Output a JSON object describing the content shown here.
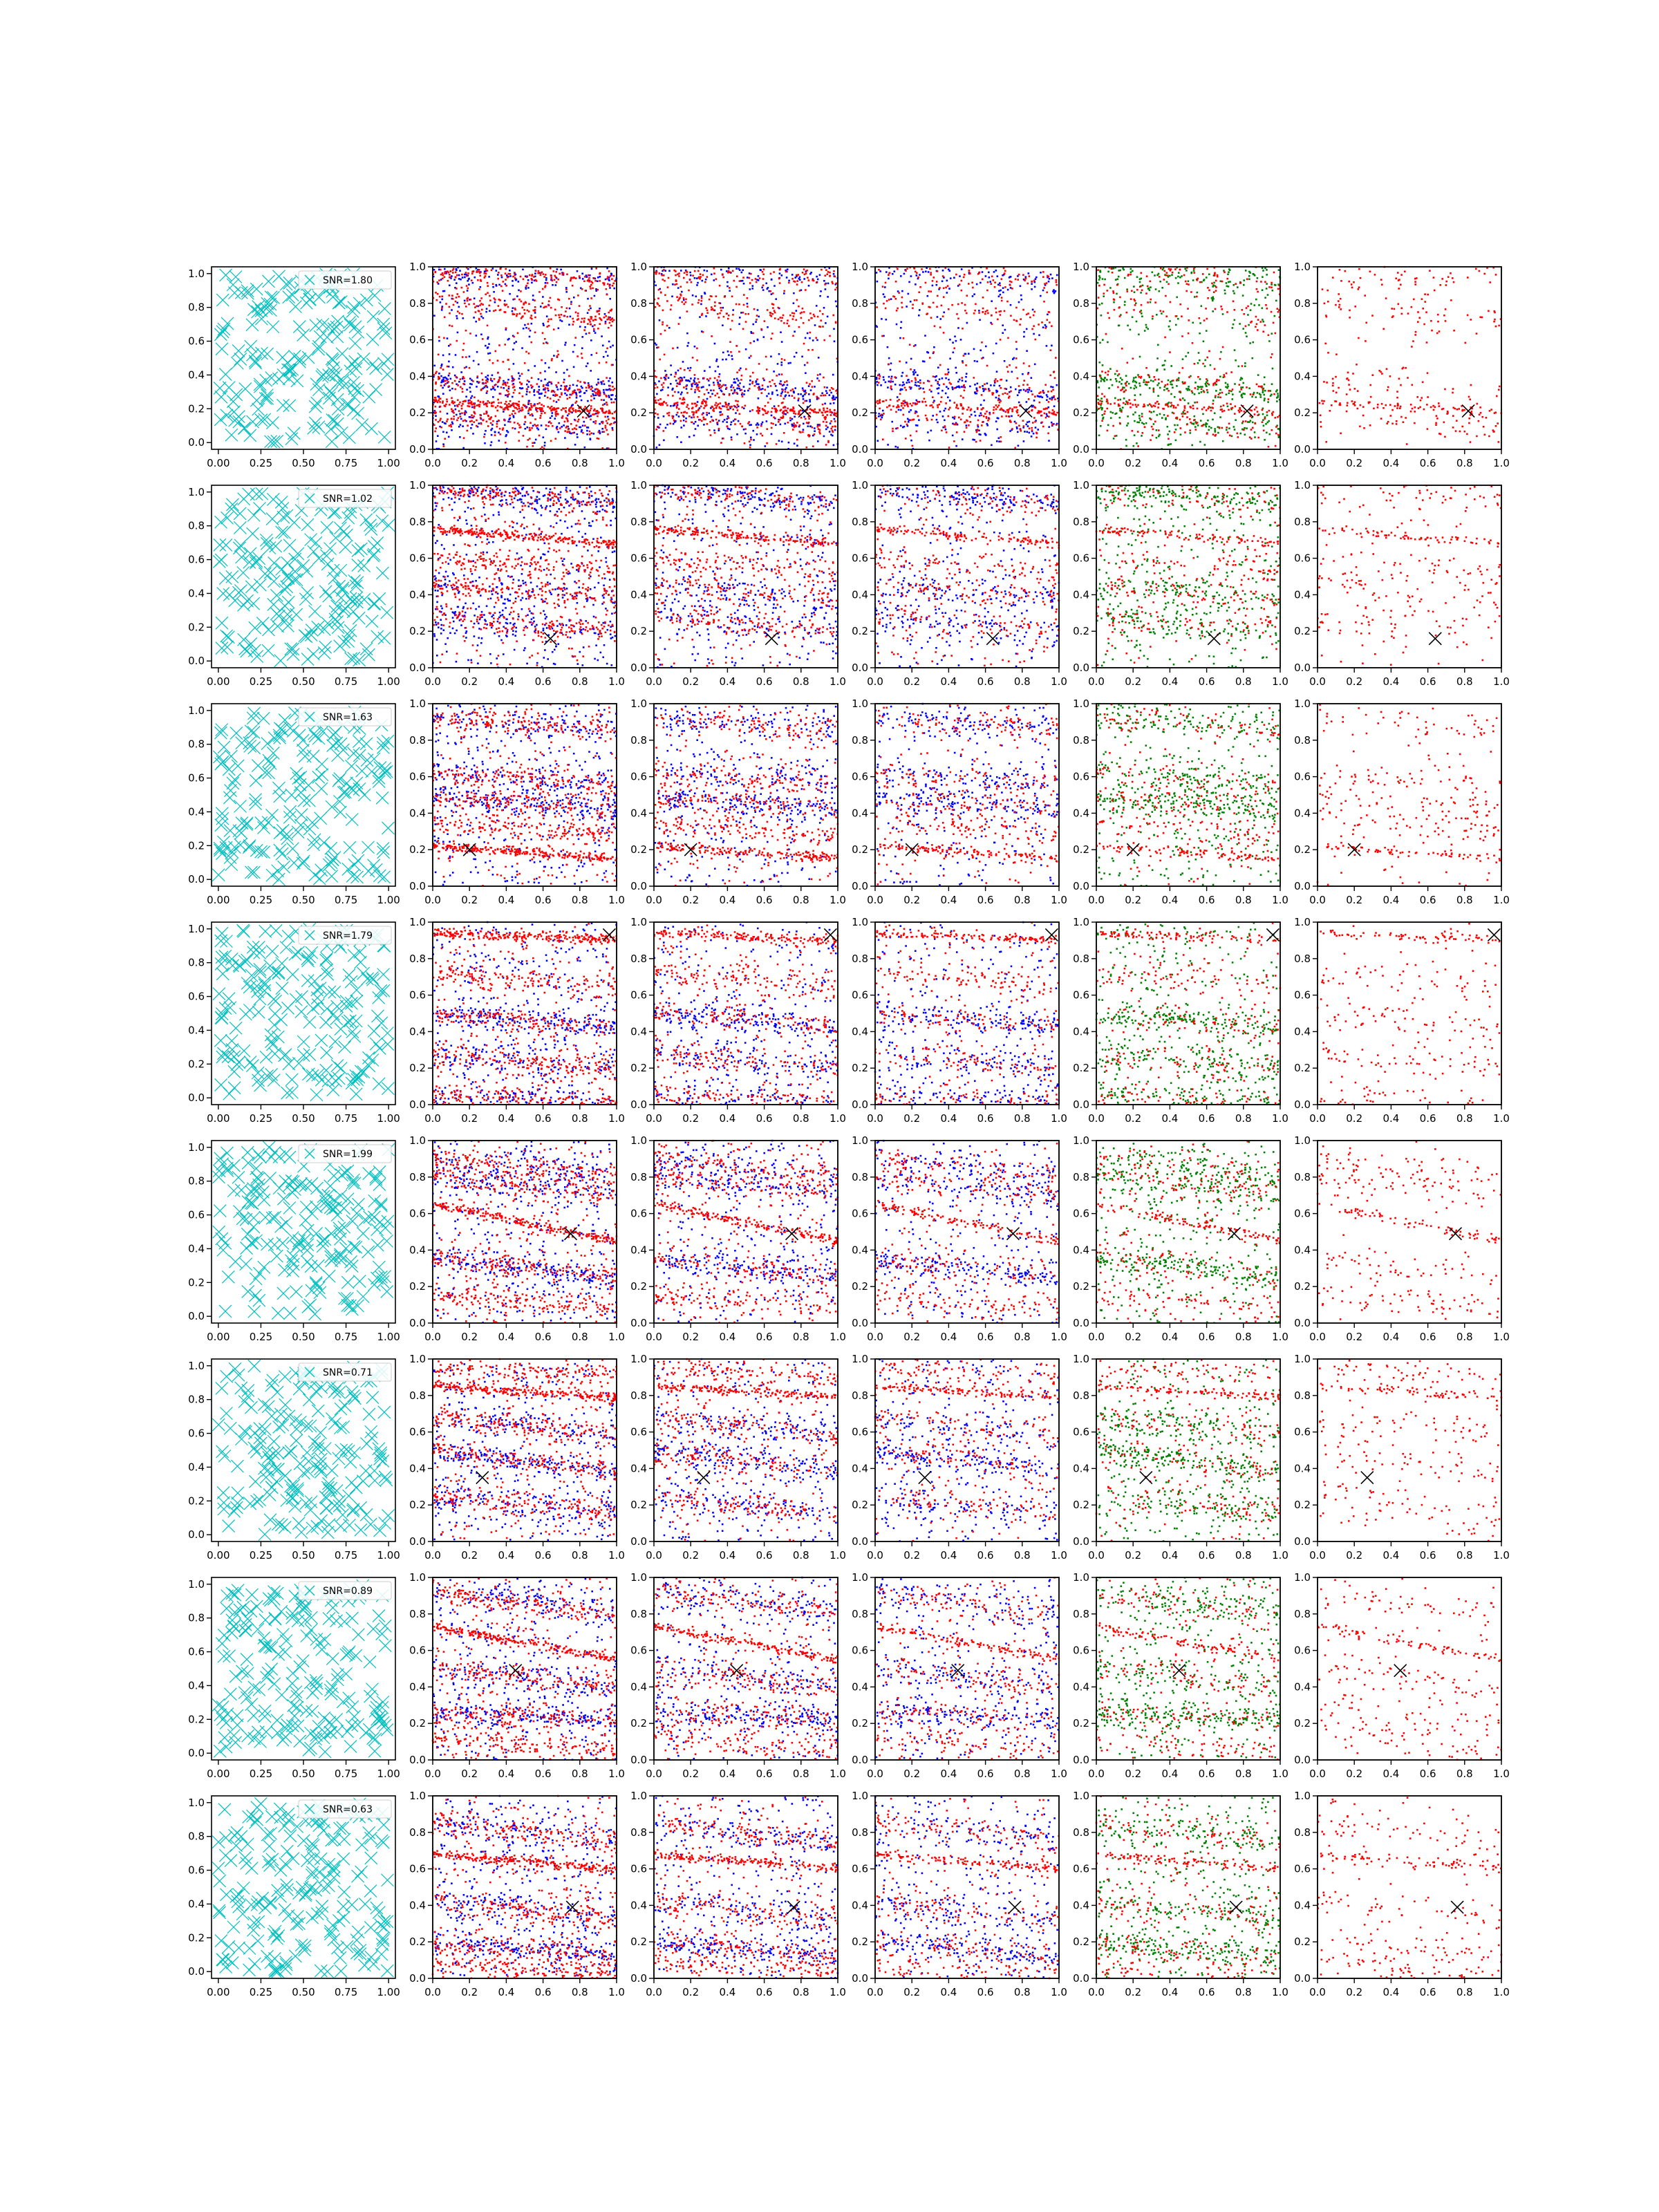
{
  "figure": {
    "rows": 8,
    "cols": 6,
    "colors": {
      "mixture": "#00bfbf",
      "red": "#ff0000",
      "blue": "#0000ff",
      "green": "#008000",
      "truth_marker": "#000000",
      "axes": "#000000"
    }
  },
  "chart_data": {
    "type": "scatter",
    "grid": false,
    "xlim": [
      0,
      1
    ],
    "first_column": {
      "xticks": [
        "0.00",
        "0.25",
        "0.50",
        "0.75",
        "1.00"
      ],
      "yticks": [
        "0.0",
        "0.2",
        "0.4",
        "0.6",
        "0.8",
        "1.0"
      ],
      "xlim": [
        -0.04,
        1.04
      ],
      "ylim": [
        -0.04,
        1.04
      ],
      "marker": "x",
      "legend_placement": "top-right"
    },
    "other_columns": {
      "xticks": [
        "0.0",
        "0.2",
        "0.4",
        "0.6",
        "0.8",
        "1.0"
      ],
      "yticks": [
        "0.0",
        "0.2",
        "0.4",
        "0.6",
        "0.8",
        "1.0"
      ],
      "xlim": [
        0,
        1
      ],
      "ylim": [
        0,
        1
      ],
      "panel_types": [
        "red-blue",
        "red-blue",
        "red-blue",
        "red-green",
        "red"
      ]
    },
    "rows": [
      {
        "snr_label": "SNR=1.80",
        "truth": [
          0.82,
          0.21
        ],
        "stripes": [
          [
            0.26,
            0.2
          ],
          [
            0.38,
            0.3
          ],
          [
            0.18,
            0.12
          ],
          [
            0.97,
            0.93
          ],
          [
            0.83,
            0.7
          ]
        ]
      },
      {
        "snr_label": "SNR=1.02",
        "truth": [
          0.64,
          0.16
        ],
        "stripes": [
          [
            0.76,
            0.68
          ],
          [
            0.98,
            0.9
          ],
          [
            0.45,
            0.38
          ],
          [
            0.28,
            0.2
          ],
          [
            0.6,
            0.52
          ]
        ]
      },
      {
        "snr_label": "SNR=1.63",
        "truth": [
          0.2,
          0.2
        ],
        "stripes": [
          [
            0.22,
            0.15
          ],
          [
            0.48,
            0.42
          ],
          [
            0.92,
            0.86
          ],
          [
            0.62,
            0.55
          ],
          [
            0.35,
            0.28
          ]
        ]
      },
      {
        "snr_label": "SNR=1.79",
        "truth": [
          0.96,
          0.93
        ],
        "stripes": [
          [
            0.94,
            0.9
          ],
          [
            0.5,
            0.42
          ],
          [
            0.28,
            0.2
          ],
          [
            0.05,
            0.01
          ],
          [
            0.72,
            0.65
          ]
        ]
      },
      {
        "snr_label": "SNR=1.99",
        "truth": [
          0.75,
          0.49
        ],
        "stripes": [
          [
            0.65,
            0.45
          ],
          [
            0.35,
            0.25
          ],
          [
            0.9,
            0.8
          ],
          [
            0.8,
            0.7
          ],
          [
            0.15,
            0.08
          ]
        ]
      },
      {
        "snr_label": "SNR=0.71",
        "truth": [
          0.27,
          0.35
        ],
        "stripes": [
          [
            0.85,
            0.79
          ],
          [
            0.5,
            0.38
          ],
          [
            0.68,
            0.58
          ],
          [
            0.25,
            0.15
          ],
          [
            0.95,
            0.9
          ]
        ]
      },
      {
        "snr_label": "SNR=0.89",
        "truth": [
          0.45,
          0.49
        ],
        "stripes": [
          [
            0.73,
            0.55
          ],
          [
            0.26,
            0.22
          ],
          [
            0.92,
            0.8
          ],
          [
            0.5,
            0.4
          ],
          [
            0.12,
            0.05
          ]
        ]
      },
      {
        "snr_label": "SNR=0.63",
        "truth": [
          0.76,
          0.39
        ],
        "stripes": [
          [
            0.68,
            0.6
          ],
          [
            0.2,
            0.12
          ],
          [
            0.42,
            0.32
          ],
          [
            0.85,
            0.75
          ],
          [
            0.08,
            0.02
          ]
        ]
      }
    ]
  }
}
